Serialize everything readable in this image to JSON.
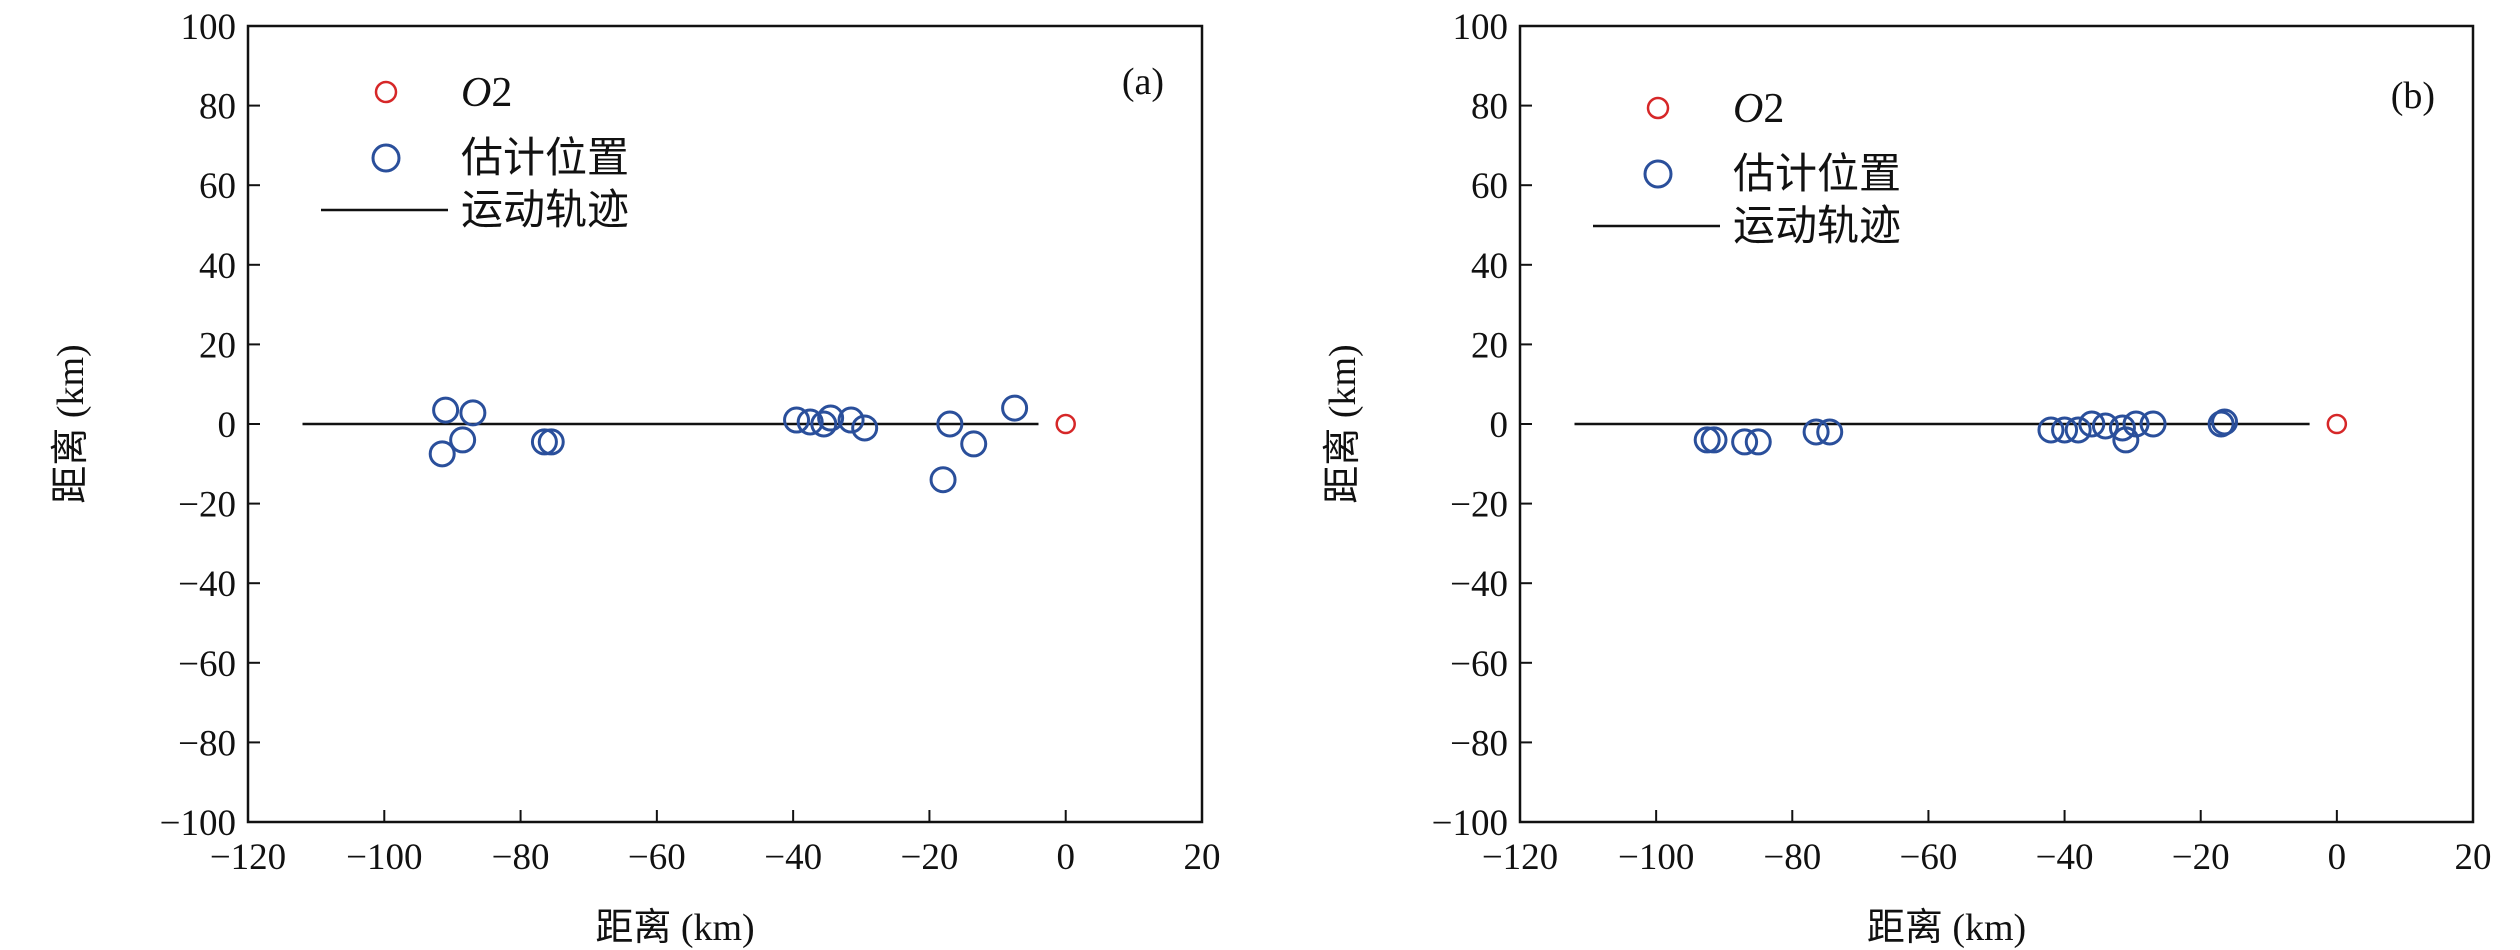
{
  "chart_data": [
    {
      "type": "scatter",
      "panel_label": "(a)",
      "xlabel": "距离 (km)",
      "ylabel": "距离 (km)",
      "xlim": [
        -120,
        20
      ],
      "ylim": [
        -100,
        100
      ],
      "xticks": [
        -120,
        -100,
        -80,
        -60,
        -40,
        -20,
        0,
        20
      ],
      "yticks": [
        -100,
        -80,
        -60,
        -40,
        -20,
        0,
        20,
        40,
        60,
        80,
        100
      ],
      "grid": false,
      "legend": {
        "placement": "top-left",
        "items": [
          {
            "label_prefix": "O",
            "label_suffix": "2",
            "marker": "small-circle",
            "color": "#d62728"
          },
          {
            "label": "估计位置",
            "marker": "large-circle",
            "color": "#2a4f9b"
          },
          {
            "label": "运动轨迹",
            "marker": "line",
            "color": "#111111"
          }
        ]
      },
      "series": [
        {
          "name": "O2",
          "color": "#d62728",
          "points": [
            [
              0,
              0
            ]
          ]
        },
        {
          "name": "估计位置",
          "color": "#2a4f9b",
          "points": [
            [
              -91,
              3.5
            ],
            [
              -87,
              2.8
            ],
            [
              -91.5,
              -7.5
            ],
            [
              -88.5,
              -4
            ],
            [
              -76.5,
              -4.5
            ],
            [
              -75.5,
              -4.5
            ],
            [
              -39.5,
              1
            ],
            [
              -37.5,
              0.5
            ],
            [
              -35.5,
              0
            ],
            [
              -34.5,
              1.5
            ],
            [
              -31.5,
              1
            ],
            [
              -29.5,
              -1
            ],
            [
              -17,
              0
            ],
            [
              -18,
              -14
            ],
            [
              -13.5,
              -5
            ],
            [
              -7.5,
              4
            ]
          ]
        },
        {
          "name": "运动轨迹",
          "color": "#111111",
          "points": [
            [
              -112,
              0
            ],
            [
              -60,
              0
            ],
            [
              -4,
              0
            ]
          ]
        }
      ]
    },
    {
      "type": "scatter",
      "panel_label": "(b)",
      "xlabel": "距离 (km)",
      "ylabel": "距离 (km)",
      "xlim": [
        -120,
        20
      ],
      "ylim": [
        -100,
        100
      ],
      "xticks": [
        -120,
        -100,
        -80,
        -60,
        -40,
        -20,
        0,
        20
      ],
      "yticks": [
        -100,
        -80,
        -60,
        -40,
        -20,
        0,
        20,
        40,
        60,
        80,
        100
      ],
      "grid": false,
      "legend": {
        "placement": "top-left",
        "items": [
          {
            "label_prefix": "O",
            "label_suffix": "2",
            "marker": "small-circle",
            "color": "#d62728"
          },
          {
            "label": "估计位置",
            "marker": "large-circle",
            "color": "#2a4f9b"
          },
          {
            "label": "运动轨迹",
            "marker": "line",
            "color": "#111111"
          }
        ]
      },
      "series": [
        {
          "name": "O2",
          "color": "#d62728",
          "points": [
            [
              0,
              0
            ]
          ]
        },
        {
          "name": "估计位置",
          "color": "#2a4f9b",
          "points": [
            [
              -92.5,
              -4
            ],
            [
              -91.5,
              -4
            ],
            [
              -87,
              -4.5
            ],
            [
              -85,
              -4.5
            ],
            [
              -76.5,
              -2
            ],
            [
              -74.5,
              -2
            ],
            [
              -42,
              -1.5
            ],
            [
              -40,
              -1.5
            ],
            [
              -38,
              -1.5
            ],
            [
              -36,
              0
            ],
            [
              -34,
              -0.5
            ],
            [
              -31.5,
              -1
            ],
            [
              -31,
              -4
            ],
            [
              -29.5,
              0
            ],
            [
              -27,
              0
            ],
            [
              -17,
              0
            ],
            [
              -16.5,
              0.5
            ]
          ]
        },
        {
          "name": "运动轨迹",
          "color": "#111111",
          "points": [
            [
              -112,
              0
            ],
            [
              -60,
              0
            ],
            [
              -4,
              0
            ]
          ]
        }
      ]
    }
  ]
}
